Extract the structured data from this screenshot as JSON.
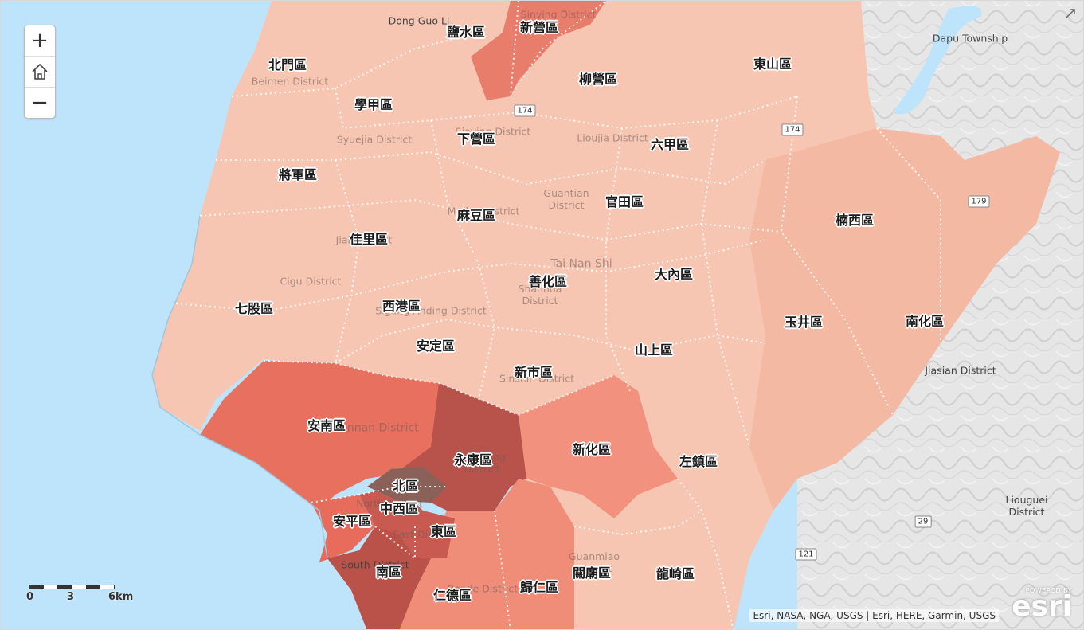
{
  "map": {
    "districts": [
      {
        "id": "yanshui",
        "label": "鹽水區"
      },
      {
        "id": "xinying",
        "label": "新營區"
      },
      {
        "id": "beimen",
        "label": "北門區"
      },
      {
        "id": "liuying",
        "label": "柳營區"
      },
      {
        "id": "dongshan",
        "label": "東山區"
      },
      {
        "id": "xuejia",
        "label": "學甲區"
      },
      {
        "id": "xiaying",
        "label": "下營區"
      },
      {
        "id": "liujia",
        "label": "六甲區"
      },
      {
        "id": "jiangjun",
        "label": "將軍區"
      },
      {
        "id": "guantian",
        "label": "官田區"
      },
      {
        "id": "nanxi",
        "label": "楠西區"
      },
      {
        "id": "madou",
        "label": "麻豆區"
      },
      {
        "id": "jiali",
        "label": "佳里區"
      },
      {
        "id": "danei",
        "label": "大內區"
      },
      {
        "id": "shanhua",
        "label": "善化區"
      },
      {
        "id": "qigu",
        "label": "七股區"
      },
      {
        "id": "xigang",
        "label": "西港區"
      },
      {
        "id": "yujing",
        "label": "玉井區"
      },
      {
        "id": "nanhua",
        "label": "南化區"
      },
      {
        "id": "anding",
        "label": "安定區"
      },
      {
        "id": "shanshang",
        "label": "山上區"
      },
      {
        "id": "xinshi",
        "label": "新市區"
      },
      {
        "id": "annan",
        "label": "安南區"
      },
      {
        "id": "xinhua",
        "label": "新化區"
      },
      {
        "id": "yongkang",
        "label": "永康區"
      },
      {
        "id": "zuozhen",
        "label": "左鎮區"
      },
      {
        "id": "north",
        "label": "北區"
      },
      {
        "id": "westcentral",
        "label": "中西區"
      },
      {
        "id": "anping",
        "label": "安平區"
      },
      {
        "id": "east",
        "label": "東區"
      },
      {
        "id": "south",
        "label": "南區"
      },
      {
        "id": "guanmiao",
        "label": "關廟區"
      },
      {
        "id": "longqi",
        "label": "龍崎區"
      },
      {
        "id": "rende",
        "label": "仁德區"
      },
      {
        "id": "guiren",
        "label": "歸仁區"
      }
    ],
    "basemap_labels": [
      {
        "text": "Dong Guo Li",
        "dark": true
      },
      {
        "text": "Sinying District",
        "dark": false
      },
      {
        "text": "Beimen District",
        "dark": false
      },
      {
        "text": "Syuejia District",
        "dark": false
      },
      {
        "text": "Siaying District",
        "dark": false
      },
      {
        "text": "Lioujia District",
        "dark": false
      },
      {
        "text": "Guantian District",
        "dark": false
      },
      {
        "text": "Madou District",
        "dark": false
      },
      {
        "text": "Jiali District",
        "dark": false
      },
      {
        "text": "Tai Nan Shi",
        "dark": false
      },
      {
        "text": "Cigu District",
        "dark": false
      },
      {
        "text": "Shanhua District",
        "dark": false
      },
      {
        "text": "Sigang Anding District",
        "dark": false
      },
      {
        "text": "Sinshih District",
        "dark": false
      },
      {
        "text": "Annan District",
        "dark": false
      },
      {
        "text": "Yongkang District",
        "dark": false
      },
      {
        "text": "North District",
        "dark": false
      },
      {
        "text": "East District",
        "dark": false
      },
      {
        "text": "South District",
        "dark": true
      },
      {
        "text": "Guanmiao District",
        "dark": false
      },
      {
        "text": "Rende District",
        "dark": false
      },
      {
        "text": "Dapu Township",
        "dark": true
      },
      {
        "text": "Jiasian District",
        "dark": true
      },
      {
        "text": "Liouguei District",
        "dark": true
      }
    ],
    "road_shields": [
      "174",
      "174",
      "179",
      "29",
      "121"
    ]
  },
  "controls": {
    "zoom_in": "+",
    "home_icon": "home-icon",
    "zoom_out": "−"
  },
  "scalebar": {
    "ticks": [
      "0",
      "3",
      "6km"
    ]
  },
  "attribution": "Esri, NASA, NGA, USGS | Esri, HERE, Garmin, USGS",
  "logo": {
    "powered_by": "POWERED BY",
    "name": "esri"
  },
  "colors": {
    "sea": "#bce3fb",
    "terrain": "#ececec",
    "light": "#f7c7b4",
    "mid_light": "#f2aa93",
    "medium": "#ef9683",
    "strong": "#e8705f",
    "darker": "#cf5852",
    "darkest": "#a34a45",
    "brown": "#8a6158"
  }
}
